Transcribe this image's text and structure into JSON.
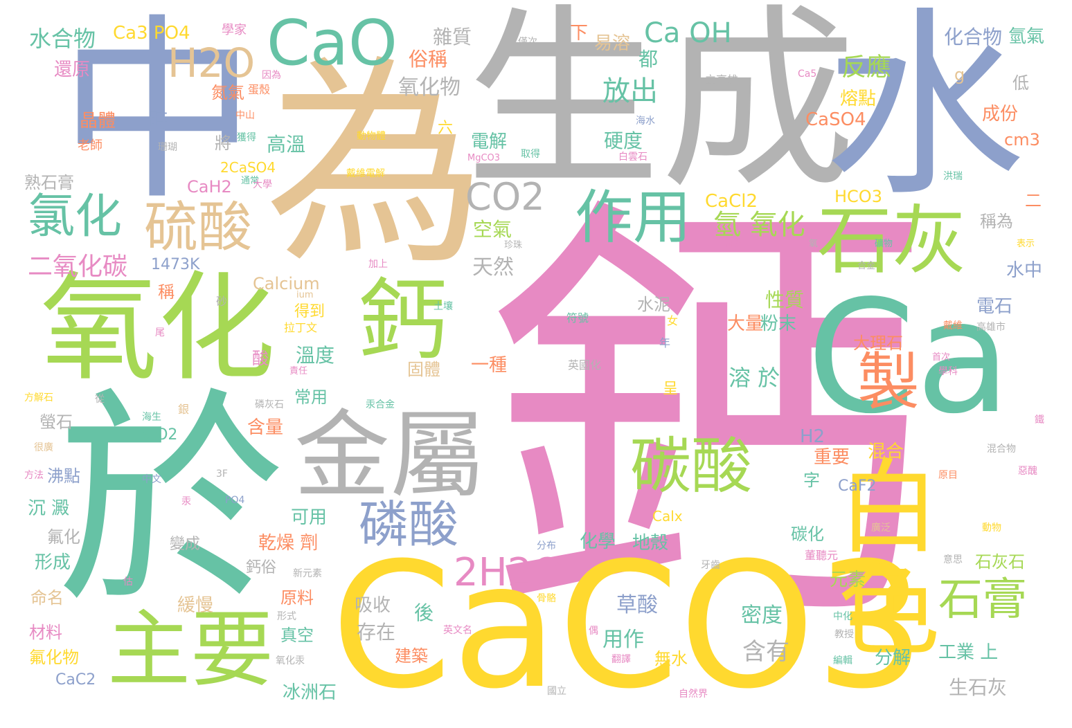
{
  "palette": {
    "pink": "#e78ac3",
    "green": "#a6d854",
    "teal": "#66c2a5",
    "blue": "#8da0cb",
    "gray": "#b3b3b3",
    "tan": "#e5c494",
    "yellow": "#ffd92f",
    "orange": "#fc8d62"
  },
  "words": [
    {
      "text": "鈣",
      "color": "pink"
    },
    {
      "text": "CaCO3",
      "color": "yellow"
    },
    {
      "text": "為",
      "color": "tan"
    },
    {
      "text": "生成",
      "color": "gray"
    },
    {
      "text": "水",
      "color": "blue"
    },
    {
      "text": "中",
      "color": "blue"
    },
    {
      "text": "於",
      "color": "teal"
    },
    {
      "text": "Ca",
      "color": "teal"
    },
    {
      "text": "氧化",
      "color": "green"
    },
    {
      "text": "鈣",
      "color": "green"
    },
    {
      "text": "CaO",
      "color": "teal"
    },
    {
      "text": "金屬",
      "color": "gray"
    },
    {
      "text": "白色",
      "color": "yellow"
    },
    {
      "text": "主要",
      "color": "green"
    },
    {
      "text": "石灰",
      "color": "green"
    },
    {
      "text": "製",
      "color": "orange"
    },
    {
      "text": "硫酸",
      "color": "tan"
    },
    {
      "text": "碳酸",
      "color": "green"
    },
    {
      "text": "作用",
      "color": "teal"
    },
    {
      "text": "磷酸",
      "color": "blue"
    },
    {
      "text": "氯化",
      "color": "teal"
    },
    {
      "text": "H2O",
      "color": "tan"
    },
    {
      "text": "CO2",
      "color": "gray"
    },
    {
      "text": "2H2O",
      "color": "pink"
    },
    {
      "text": "石膏",
      "color": "green"
    },
    {
      "text": "Ca OH",
      "color": "teal"
    },
    {
      "text": "二氧化碳",
      "color": "pink"
    },
    {
      "text": "反應",
      "color": "green"
    },
    {
      "text": "放出",
      "color": "teal"
    },
    {
      "text": "氫 氧化",
      "color": "green"
    },
    {
      "text": "化合物",
      "color": "blue"
    },
    {
      "text": "氫氣",
      "color": "teal"
    },
    {
      "text": "水合物",
      "color": "teal"
    },
    {
      "text": "Ca3 PO4",
      "color": "yellow"
    },
    {
      "text": "學家",
      "color": "pink"
    },
    {
      "text": "雜質",
      "color": "gray"
    },
    {
      "text": "下",
      "color": "orange"
    },
    {
      "text": "易溶",
      "color": "tan"
    },
    {
      "text": "都",
      "color": "teal"
    },
    {
      "text": "俗稱",
      "color": "orange"
    },
    {
      "text": "僅次",
      "color": "gray"
    },
    {
      "text": "還原",
      "color": "pink"
    },
    {
      "text": "因為",
      "color": "pink"
    },
    {
      "text": "立高雄",
      "color": "gray"
    },
    {
      "text": "Ca5",
      "color": "pink"
    },
    {
      "text": "g",
      "color": "tan"
    },
    {
      "text": "低",
      "color": "gray"
    },
    {
      "text": "氧化物",
      "color": "gray"
    },
    {
      "text": "氮氣",
      "color": "orange"
    },
    {
      "text": "蛋殼",
      "color": "orange"
    },
    {
      "text": "熔點",
      "color": "yellow"
    },
    {
      "text": "成份",
      "color": "orange"
    },
    {
      "text": "晶體",
      "color": "orange"
    },
    {
      "text": "時",
      "color": "blue"
    },
    {
      "text": "中山",
      "color": "orange"
    },
    {
      "text": "海水",
      "color": "blue"
    },
    {
      "text": "CaSO4",
      "color": "orange"
    },
    {
      "text": "cm3",
      "color": "orange"
    },
    {
      "text": "老師",
      "color": "orange"
    },
    {
      "text": "珊瑚",
      "color": "gray"
    },
    {
      "text": "獲得",
      "color": "teal"
    },
    {
      "text": "動物體",
      "color": "yellow"
    },
    {
      "text": "六",
      "color": "yellow"
    },
    {
      "text": "高溫",
      "color": "teal"
    },
    {
      "text": "電解",
      "color": "teal"
    },
    {
      "text": "取得",
      "color": "teal"
    },
    {
      "text": "硬度",
      "color": "teal"
    },
    {
      "text": "白雲石",
      "color": "pink"
    },
    {
      "text": "將",
      "color": "gray"
    },
    {
      "text": "MgCO3",
      "color": "pink"
    },
    {
      "text": "熟石膏",
      "color": "gray"
    },
    {
      "text": "通常",
      "color": "teal"
    },
    {
      "text": "大學",
      "color": "pink"
    },
    {
      "text": "2CaSO4",
      "color": "yellow"
    },
    {
      "text": "戴維電解",
      "color": "yellow"
    },
    {
      "text": "洪瑞",
      "color": "teal"
    },
    {
      "text": "CaH2",
      "color": "pink"
    },
    {
      "text": "CaCl2",
      "color": "yellow"
    },
    {
      "text": "HCO3",
      "color": "yellow"
    },
    {
      "text": "稱為",
      "color": "gray"
    },
    {
      "text": "二",
      "color": "orange"
    },
    {
      "text": "1473K",
      "color": "blue"
    },
    {
      "text": "空氣",
      "color": "green"
    },
    {
      "text": "珍珠",
      "color": "gray"
    },
    {
      "text": "許多",
      "color": "pink"
    },
    {
      "text": "氧",
      "color": "gray"
    },
    {
      "text": "礦物",
      "color": "teal"
    },
    {
      "text": "表示",
      "color": "yellow"
    },
    {
      "text": "加上",
      "color": "pink"
    },
    {
      "text": "天然",
      "color": "gray"
    },
    {
      "text": "合金",
      "color": "gray"
    },
    {
      "text": "水中",
      "color": "blue"
    },
    {
      "text": "Calcium",
      "color": "tan"
    },
    {
      "text": "ium",
      "color": "tan"
    },
    {
      "text": "稱",
      "color": "orange"
    },
    {
      "text": "性質",
      "color": "green"
    },
    {
      "text": "電石",
      "color": "blue"
    },
    {
      "text": "不 溶",
      "color": "gray"
    },
    {
      "text": "砂",
      "color": "gray"
    },
    {
      "text": "得到",
      "color": "yellow"
    },
    {
      "text": "土壤",
      "color": "teal"
    },
    {
      "text": "水泥",
      "color": "gray"
    },
    {
      "text": "拉丁文",
      "color": "yellow"
    },
    {
      "text": "符號",
      "color": "teal"
    },
    {
      "text": "女",
      "color": "yellow"
    },
    {
      "text": "大量",
      "color": "orange"
    },
    {
      "text": "粉末",
      "color": "teal"
    },
    {
      "text": "戴維",
      "color": "orange"
    },
    {
      "text": "高雄市",
      "color": "gray"
    },
    {
      "text": "尾",
      "color": "pink"
    },
    {
      "text": "溫度",
      "color": "teal"
    },
    {
      "text": "大理石",
      "color": "orange"
    },
    {
      "text": "年",
      "color": "blue"
    },
    {
      "text": "酸",
      "color": "pink"
    },
    {
      "text": "責任",
      "color": "pink"
    },
    {
      "text": "英國化",
      "color": "gray"
    },
    {
      "text": "一種",
      "color": "orange"
    },
    {
      "text": "首次",
      "color": "pink"
    },
    {
      "text": "固體",
      "color": "tan"
    },
    {
      "text": "溶 於",
      "color": "teal"
    },
    {
      "text": "學科",
      "color": "pink"
    },
    {
      "text": "方解石",
      "color": "yellow"
    },
    {
      "text": "從",
      "color": "gray"
    },
    {
      "text": "磷灰石",
      "color": "gray"
    },
    {
      "text": "汞合金",
      "color": "teal"
    },
    {
      "text": "常用",
      "color": "teal"
    },
    {
      "text": "呈",
      "color": "yellow"
    },
    {
      "text": "螢石",
      "color": "gray"
    },
    {
      "text": "銀",
      "color": "tan"
    },
    {
      "text": "含量",
      "color": "orange"
    },
    {
      "text": "海生",
      "color": "teal"
    },
    {
      "text": "鐵",
      "color": "pink"
    },
    {
      "text": "SiO2",
      "color": "teal"
    },
    {
      "text": "H2",
      "color": "blue"
    },
    {
      "text": "混合",
      "color": "yellow"
    },
    {
      "text": "很廣",
      "color": "tan"
    },
    {
      "text": "重要",
      "color": "orange"
    },
    {
      "text": "混合物",
      "color": "gray"
    },
    {
      "text": "沸點",
      "color": "blue"
    },
    {
      "text": "3F",
      "color": "gray"
    },
    {
      "text": "字",
      "color": "teal"
    },
    {
      "text": "方法",
      "color": "pink"
    },
    {
      "text": "中文",
      "color": "blue"
    },
    {
      "text": "原目",
      "color": "orange"
    },
    {
      "text": "惡醜",
      "color": "pink"
    },
    {
      "text": "CaF2",
      "color": "blue"
    },
    {
      "text": "沉 澱",
      "color": "teal"
    },
    {
      "text": "PO4",
      "color": "blue"
    },
    {
      "text": "可用",
      "color": "teal"
    },
    {
      "text": "Calx",
      "color": "yellow"
    },
    {
      "text": "汞",
      "color": "pink"
    },
    {
      "text": "氟化",
      "color": "gray"
    },
    {
      "text": "乾燥 劑",
      "color": "orange"
    },
    {
      "text": "化學",
      "color": "teal"
    },
    {
      "text": "地殼",
      "color": "teal"
    },
    {
      "text": "碳化",
      "color": "teal"
    },
    {
      "text": "分布",
      "color": "blue"
    },
    {
      "text": "廣泛",
      "color": "tan"
    },
    {
      "text": "動物",
      "color": "yellow"
    },
    {
      "text": "形成",
      "color": "teal"
    },
    {
      "text": "變成",
      "color": "gray"
    },
    {
      "text": "董聽元",
      "color": "pink"
    },
    {
      "text": "石灰石",
      "color": "green"
    },
    {
      "text": "鈣俗",
      "color": "gray"
    },
    {
      "text": "新元素",
      "color": "gray"
    },
    {
      "text": "牙齒",
      "color": "gray"
    },
    {
      "text": "意思",
      "color": "gray"
    },
    {
      "text": "估",
      "color": "pink"
    },
    {
      "text": "命名",
      "color": "tan"
    },
    {
      "text": "原料",
      "color": "orange"
    },
    {
      "text": "骨骼",
      "color": "yellow"
    },
    {
      "text": "元素",
      "color": "green"
    },
    {
      "text": "吸收",
      "color": "gray"
    },
    {
      "text": "緩慢",
      "color": "tan"
    },
    {
      "text": "草酸",
      "color": "blue"
    },
    {
      "text": "後",
      "color": "teal"
    },
    {
      "text": "密度",
      "color": "teal"
    },
    {
      "text": "形式",
      "color": "gray"
    },
    {
      "text": "中化",
      "color": "teal"
    },
    {
      "text": "存在",
      "color": "gray"
    },
    {
      "text": "英文名",
      "color": "pink"
    },
    {
      "text": "材料",
      "color": "pink"
    },
    {
      "text": "真空",
      "color": "teal"
    },
    {
      "text": "用作",
      "color": "teal"
    },
    {
      "text": "教授",
      "color": "gray"
    },
    {
      "text": "偶",
      "color": "pink"
    },
    {
      "text": "氟化物",
      "color": "yellow"
    },
    {
      "text": "建築",
      "color": "orange"
    },
    {
      "text": "無水",
      "color": "yellow"
    },
    {
      "text": "含有",
      "color": "gray"
    },
    {
      "text": "分解",
      "color": "teal"
    },
    {
      "text": "工業 上",
      "color": "teal"
    },
    {
      "text": "氧化汞",
      "color": "gray"
    },
    {
      "text": "翻譯",
      "color": "pink"
    },
    {
      "text": "編輯",
      "color": "teal"
    },
    {
      "text": "CaC2",
      "color": "blue"
    },
    {
      "text": "冰洲石",
      "color": "teal"
    },
    {
      "text": "國立",
      "color": "gray"
    },
    {
      "text": "自然界",
      "color": "pink"
    },
    {
      "text": "生石灰",
      "color": "gray"
    }
  ]
}
